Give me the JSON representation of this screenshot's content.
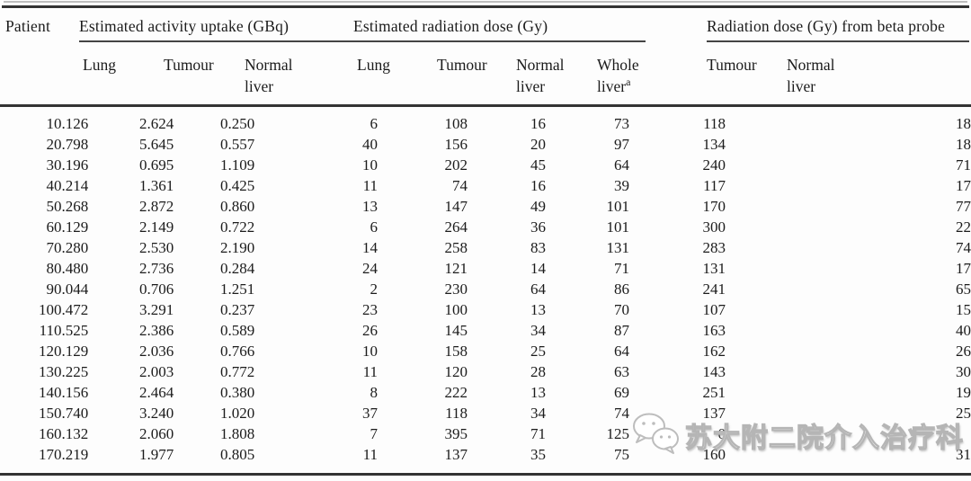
{
  "header": {
    "patient": "Patient",
    "group1": "Estimated activity uptake (GBq)",
    "group2": "Estimated radiation dose (Gy)",
    "group3": "Radiation dose (Gy) from beta probe",
    "sub": {
      "lung1": "Lung",
      "tumour1": "Tumour",
      "normal1": "Normal liver",
      "lung2": "Lung",
      "tumour2": "Tumour",
      "normal2": "Normal liver",
      "whole": "Whole liver",
      "whole_sup": "a",
      "tumour3": "Tumour",
      "normal3": "Normal liver"
    }
  },
  "table": {
    "columns": [
      "Patient",
      "Lung uptake (GBq)",
      "Tumour uptake (GBq)",
      "Normal liver uptake (GBq)",
      "Lung dose (Gy)",
      "Tumour dose (Gy)",
      "Normal liver dose (Gy)",
      "Whole liver dose (Gy)",
      "Beta probe Tumour dose (Gy)",
      "Beta probe Normal liver dose (Gy)"
    ],
    "rows": [
      [
        "1",
        "0.126",
        "2.624",
        "0.250",
        "6",
        "108",
        "16",
        "73",
        "118",
        "18"
      ],
      [
        "2",
        "0.798",
        "5.645",
        "0.557",
        "40",
        "156",
        "20",
        "97",
        "134",
        "18"
      ],
      [
        "3",
        "0.196",
        "0.695",
        "1.109",
        "10",
        "202",
        "45",
        "64",
        "240",
        "71"
      ],
      [
        "4",
        "0.214",
        "1.361",
        "0.425",
        "11",
        "74",
        "16",
        "39",
        "117",
        "17"
      ],
      [
        "5",
        "0.268",
        "2.872",
        "0.860",
        "13",
        "147",
        "49",
        "101",
        "170",
        "77"
      ],
      [
        "6",
        "0.129",
        "2.149",
        "0.722",
        "6",
        "264",
        "36",
        "101",
        "300",
        "22"
      ],
      [
        "7",
        "0.280",
        "2.530",
        "2.190",
        "14",
        "258",
        "83",
        "131",
        "283",
        "74"
      ],
      [
        "8",
        "0.480",
        "2.736",
        "0.284",
        "24",
        "121",
        "14",
        "71",
        "131",
        "17"
      ],
      [
        "9",
        "0.044",
        "0.706",
        "1.251",
        "2",
        "230",
        "64",
        "86",
        "241",
        "65"
      ],
      [
        "10",
        "0.472",
        "3.291",
        "0.237",
        "23",
        "100",
        "13",
        "70",
        "107",
        "15"
      ],
      [
        "11",
        "0.525",
        "2.386",
        "0.589",
        "26",
        "145",
        "34",
        "87",
        "163",
        "40"
      ],
      [
        "12",
        "0.129",
        "2.036",
        "0.766",
        "10",
        "158",
        "25",
        "64",
        "162",
        "26"
      ],
      [
        "13",
        "0.225",
        "2.003",
        "0.772",
        "11",
        "120",
        "28",
        "63",
        "143",
        "30"
      ],
      [
        "14",
        "0.156",
        "2.464",
        "0.380",
        "8",
        "222",
        "13",
        "69",
        "251",
        "19"
      ],
      [
        "15",
        "0.740",
        "3.240",
        "1.020",
        "37",
        "118",
        "34",
        "74",
        "137",
        "25"
      ],
      [
        "16",
        "0.132",
        "2.060",
        "1.808",
        "7",
        "395",
        "71",
        "125",
        "0",
        ""
      ],
      [
        "17",
        "0.219",
        "1.977",
        "0.805",
        "11",
        "137",
        "35",
        "75",
        "160",
        "31"
      ]
    ]
  },
  "watermark": {
    "text": "苏大附二院介入治疗科",
    "icon": "wechat-icon",
    "text_color": "#ffffff",
    "outline_color": "#b5b5b5"
  }
}
